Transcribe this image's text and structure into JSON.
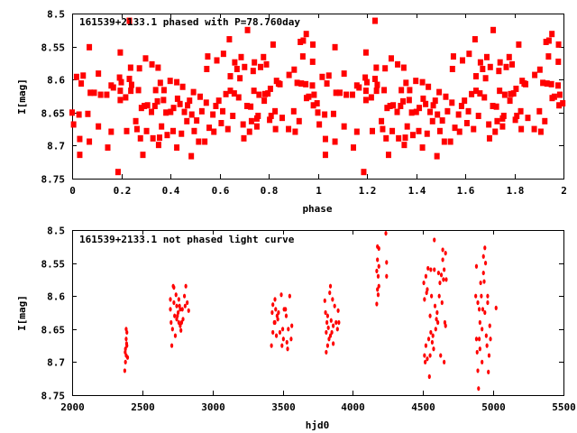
{
  "chart_data": [
    {
      "type": "scatter",
      "title": "161539+2133.1 phased with P=78.760day",
      "xlabel": "phase",
      "ylabel": "I[mag]",
      "xlim": [
        0,
        2
      ],
      "ylim": [
        8.75,
        8.5
      ],
      "y_inverted": true,
      "x_ticks": [
        "0",
        "0.2",
        "0.4",
        "0.6",
        "0.8",
        "1",
        "1.2",
        "1.4",
        "1.6",
        "1.8",
        "2"
      ],
      "x_tick_values": [
        0,
        0.2,
        0.4,
        0.6,
        0.8,
        1,
        1.2,
        1.4,
        1.6,
        1.8,
        2
      ],
      "y_ticks": [
        "8.5",
        "8.55",
        "8.6",
        "8.65",
        "8.7",
        "8.75"
      ],
      "y_tick_values": [
        8.5,
        8.55,
        8.6,
        8.65,
        8.7,
        8.75
      ],
      "grid": false,
      "color": "#ff0000",
      "phase_repeated_twice": true,
      "points": [
        [
          0.0,
          8.65
        ],
        [
          0.006,
          8.668
        ],
        [
          0.018,
          8.596
        ],
        [
          0.028,
          8.653
        ],
        [
          0.031,
          8.69
        ],
        [
          0.031,
          8.714
        ],
        [
          0.037,
          8.606
        ],
        [
          0.045,
          8.594
        ],
        [
          0.064,
          8.652
        ],
        [
          0.07,
          8.551
        ],
        [
          0.07,
          8.694
        ],
        [
          0.074,
          8.62
        ],
        [
          0.09,
          8.62
        ],
        [
          0.107,
          8.591
        ],
        [
          0.107,
          8.671
        ],
        [
          0.116,
          8.623
        ],
        [
          0.141,
          8.623
        ],
        [
          0.145,
          8.703
        ],
        [
          0.159,
          8.679
        ],
        [
          0.159,
          8.609
        ],
        [
          0.168,
          8.612
        ],
        [
          0.187,
          8.74
        ],
        [
          0.193,
          8.597
        ],
        [
          0.196,
          8.559
        ],
        [
          0.196,
          8.617
        ],
        [
          0.196,
          8.631
        ],
        [
          0.2,
          8.604
        ],
        [
          0.218,
          8.627
        ],
        [
          0.222,
          8.678
        ],
        [
          0.233,
          8.511
        ],
        [
          0.233,
          8.599
        ],
        [
          0.238,
          8.582
        ],
        [
          0.239,
          8.617
        ],
        [
          0.242,
          8.608
        ],
        [
          0.259,
          8.663
        ],
        [
          0.264,
          8.675
        ],
        [
          0.27,
          8.616
        ],
        [
          0.274,
          8.583
        ],
        [
          0.278,
          8.689
        ],
        [
          0.282,
          8.643
        ],
        [
          0.288,
          8.714
        ],
        [
          0.294,
          8.64
        ],
        [
          0.299,
          8.568
        ],
        [
          0.303,
          8.678
        ],
        [
          0.307,
          8.639
        ],
        [
          0.323,
          8.649
        ],
        [
          0.325,
          8.577
        ],
        [
          0.329,
          8.689
        ],
        [
          0.337,
          8.64
        ],
        [
          0.34,
          8.616
        ],
        [
          0.347,
          8.633
        ],
        [
          0.35,
          8.582
        ],
        [
          0.352,
          8.699
        ],
        [
          0.356,
          8.688
        ],
        [
          0.359,
          8.605
        ],
        [
          0.364,
          8.671
        ],
        [
          0.372,
          8.631
        ],
        [
          0.374,
          8.616
        ],
        [
          0.382,
          8.65
        ],
        [
          0.387,
          8.684
        ],
        [
          0.399,
          8.602
        ],
        [
          0.401,
          8.649
        ],
        [
          0.411,
          8.678
        ],
        [
          0.413,
          8.643
        ],
        [
          0.426,
          8.604
        ],
        [
          0.426,
          8.703
        ],
        [
          0.429,
          8.629
        ],
        [
          0.439,
          8.637
        ],
        [
          0.445,
          8.682
        ],
        [
          0.45,
          8.611
        ],
        [
          0.457,
          8.649
        ],
        [
          0.467,
          8.663
        ],
        [
          0.47,
          8.639
        ],
        [
          0.478,
          8.632
        ],
        [
          0.485,
          8.716
        ],
        [
          0.487,
          8.653
        ],
        [
          0.494,
          8.619
        ],
        [
          0.497,
          8.678
        ],
        [
          0.507,
          8.662
        ],
        [
          0.515,
          8.694
        ],
        [
          0.521,
          8.626
        ],
        [
          0.528,
          8.648
        ],
        [
          0.54,
          8.694
        ],
        [
          0.546,
          8.635
        ],
        [
          0.548,
          8.584
        ],
        [
          0.552,
          8.565
        ],
        [
          0.558,
          8.673
        ],
        [
          0.573,
          8.653
        ],
        [
          0.577,
          8.679
        ],
        [
          0.585,
          8.64
        ],
        [
          0.589,
          8.571
        ],
        [
          0.597,
          8.632
        ],
        [
          0.607,
          8.666
        ],
        [
          0.613,
          8.648
        ],
        [
          0.616,
          8.561
        ],
        [
          0.626,
          8.622
        ],
        [
          0.634,
          8.675
        ],
        [
          0.64,
          8.539
        ],
        [
          0.644,
          8.595
        ],
        [
          0.644,
          8.617
        ],
        [
          0.654,
          8.655
        ],
        [
          0.66,
          8.621
        ],
        [
          0.662,
          8.574
        ],
        [
          0.671,
          8.584
        ],
        [
          0.678,
          8.627
        ],
        [
          0.683,
          8.598
        ],
        [
          0.688,
          8.566
        ],
        [
          0.696,
          8.668
        ],
        [
          0.699,
          8.689
        ],
        [
          0.702,
          8.581
        ],
        [
          0.712,
          8.64
        ],
        [
          0.714,
          8.525
        ],
        [
          0.722,
          8.679
        ],
        [
          0.727,
          8.641
        ],
        [
          0.73,
          8.663
        ],
        [
          0.737,
          8.587
        ],
        [
          0.74,
          8.617
        ],
        [
          0.742,
          8.574
        ],
        [
          0.752,
          8.659
        ],
        [
          0.752,
          8.671
        ],
        [
          0.757,
          8.655
        ],
        [
          0.761,
          8.623
        ],
        [
          0.767,
          8.581
        ],
        [
          0.779,
          8.566
        ],
        [
          0.782,
          8.632
        ],
        [
          0.785,
          8.622
        ],
        [
          0.791,
          8.577
        ],
        [
          0.797,
          8.621
        ],
        [
          0.804,
          8.661
        ],
        [
          0.807,
          8.614
        ],
        [
          0.81,
          8.655
        ],
        [
          0.818,
          8.547
        ],
        [
          0.826,
          8.648
        ],
        [
          0.828,
          8.675
        ],
        [
          0.832,
          8.602
        ],
        [
          0.84,
          8.606
        ],
        [
          0.846,
          8.607
        ],
        [
          0.855,
          8.658
        ],
        [
          0.881,
          8.675
        ],
        [
          0.883,
          8.593
        ],
        [
          0.902,
          8.648
        ],
        [
          0.904,
          8.585
        ],
        [
          0.908,
          8.679
        ],
        [
          0.916,
          8.605
        ],
        [
          0.924,
          8.663
        ],
        [
          0.929,
          8.543
        ],
        [
          0.933,
          8.606
        ],
        [
          0.939,
          8.565
        ],
        [
          0.941,
          8.541
        ],
        [
          0.951,
          8.607
        ],
        [
          0.953,
          8.531
        ],
        [
          0.954,
          8.628
        ],
        [
          0.963,
          8.626
        ],
        [
          0.978,
          8.609
        ],
        [
          0.979,
          8.573
        ],
        [
          0.98,
          8.547
        ],
        [
          0.982,
          8.639
        ],
        [
          0.985,
          8.623
        ],
        [
          0.997,
          8.636
        ]
      ]
    },
    {
      "type": "scatter",
      "title": "161539+2133.1 not phased light curve",
      "xlabel": "hjd0",
      "ylabel": "I[mag]",
      "xlim": [
        2000,
        5500
      ],
      "ylim": [
        8.75,
        8.5
      ],
      "y_inverted": true,
      "x_ticks": [
        "2000",
        "2500",
        "3000",
        "3500",
        "4000",
        "4500",
        "5000",
        "5500"
      ],
      "x_tick_values": [
        2000,
        2500,
        3000,
        3500,
        4000,
        4500,
        5000,
        5500
      ],
      "y_ticks": [
        "8.5",
        "8.55",
        "8.6",
        "8.65",
        "8.7",
        "8.75"
      ],
      "y_tick_values": [
        8.5,
        8.55,
        8.6,
        8.65,
        8.7,
        8.75
      ],
      "grid": false,
      "color": "#ff0000",
      "points": [
        [
          2375,
          8.713
        ],
        [
          2380,
          8.7
        ],
        [
          2385,
          8.69
        ],
        [
          2380,
          8.68
        ],
        [
          2390,
          8.675
        ],
        [
          2385,
          8.665
        ],
        [
          2390,
          8.655
        ],
        [
          2385,
          8.65
        ],
        [
          2395,
          8.693
        ],
        [
          2378,
          8.685
        ],
        [
          2388,
          8.672
        ],
        [
          2700,
          8.605
        ],
        [
          2700,
          8.62
        ],
        [
          2705,
          8.64
        ],
        [
          2710,
          8.675
        ],
        [
          2715,
          8.65
        ],
        [
          2720,
          8.585
        ],
        [
          2725,
          8.587
        ],
        [
          2730,
          8.63
        ],
        [
          2735,
          8.66
        ],
        [
          2740,
          8.598
        ],
        [
          2745,
          8.615
        ],
        [
          2750,
          8.63
        ],
        [
          2755,
          8.625
        ],
        [
          2760,
          8.64
        ],
        [
          2765,
          8.615
        ],
        [
          2770,
          8.645
        ],
        [
          2775,
          8.652
        ],
        [
          2780,
          8.64
        ],
        [
          2785,
          8.62
        ],
        [
          2790,
          8.635
        ],
        [
          2800,
          8.6
        ],
        [
          2805,
          8.615
        ],
        [
          2810,
          8.585
        ],
        [
          2820,
          8.61
        ],
        [
          2830,
          8.622
        ],
        [
          2725,
          8.61
        ],
        [
          2745,
          8.635
        ],
        [
          2760,
          8.605
        ],
        [
          2770,
          8.62
        ],
        [
          3420,
          8.675
        ],
        [
          3425,
          8.625
        ],
        [
          3430,
          8.613
        ],
        [
          3430,
          8.655
        ],
        [
          3440,
          8.64
        ],
        [
          3445,
          8.605
        ],
        [
          3450,
          8.62
        ],
        [
          3455,
          8.66
        ],
        [
          3460,
          8.63
        ],
        [
          3465,
          8.635
        ],
        [
          3470,
          8.625
        ],
        [
          3480,
          8.655
        ],
        [
          3490,
          8.598
        ],
        [
          3495,
          8.675
        ],
        [
          3500,
          8.65
        ],
        [
          3505,
          8.665
        ],
        [
          3510,
          8.62
        ],
        [
          3520,
          8.62
        ],
        [
          3530,
          8.67
        ],
        [
          3535,
          8.68
        ],
        [
          3540,
          8.65
        ],
        [
          3550,
          8.6
        ],
        [
          3560,
          8.665
        ],
        [
          3565,
          8.645
        ],
        [
          3525,
          8.63
        ],
        [
          3445,
          8.64
        ],
        [
          3800,
          8.607
        ],
        [
          3805,
          8.625
        ],
        [
          3810,
          8.685
        ],
        [
          3810,
          8.655
        ],
        [
          3815,
          8.64
        ],
        [
          3820,
          8.675
        ],
        [
          3825,
          8.648
        ],
        [
          3830,
          8.665
        ],
        [
          3835,
          8.595
        ],
        [
          3840,
          8.585
        ],
        [
          3845,
          8.637
        ],
        [
          3850,
          8.655
        ],
        [
          3855,
          8.605
        ],
        [
          3860,
          8.645
        ],
        [
          3860,
          8.672
        ],
        [
          3870,
          8.615
        ],
        [
          3880,
          8.64
        ],
        [
          3890,
          8.65
        ],
        [
          3895,
          8.622
        ],
        [
          3900,
          8.64
        ],
        [
          3820,
          8.63
        ],
        [
          3840,
          8.66
        ],
        [
          4170,
          8.612
        ],
        [
          4170,
          8.562
        ],
        [
          4175,
          8.545
        ],
        [
          4175,
          8.525
        ],
        [
          4180,
          8.57
        ],
        [
          4180,
          8.598
        ],
        [
          4185,
          8.555
        ],
        [
          4185,
          8.585
        ],
        [
          4185,
          8.528
        ],
        [
          4235,
          8.505
        ],
        [
          4240,
          8.549
        ],
        [
          4240,
          8.57
        ],
        [
          4175,
          8.59
        ],
        [
          4505,
          8.58
        ],
        [
          4510,
          8.605
        ],
        [
          4510,
          8.69
        ],
        [
          4515,
          8.7
        ],
        [
          4520,
          8.57
        ],
        [
          4520,
          8.675
        ],
        [
          4525,
          8.595
        ],
        [
          4530,
          8.59
        ],
        [
          4530,
          8.695
        ],
        [
          4535,
          8.558
        ],
        [
          4540,
          8.665
        ],
        [
          4545,
          8.722
        ],
        [
          4550,
          8.69
        ],
        [
          4550,
          8.63
        ],
        [
          4555,
          8.56
        ],
        [
          4555,
          8.655
        ],
        [
          4560,
          8.6
        ],
        [
          4565,
          8.67
        ],
        [
          4570,
          8.66
        ],
        [
          4575,
          8.68
        ],
        [
          4580,
          8.515
        ],
        [
          4580,
          8.56
        ],
        [
          4585,
          8.615
        ],
        [
          4590,
          8.65
        ],
        [
          4595,
          8.635
        ],
        [
          4600,
          8.625
        ],
        [
          4605,
          8.64
        ],
        [
          4610,
          8.565
        ],
        [
          4615,
          8.6
        ],
        [
          4620,
          8.58
        ],
        [
          4625,
          8.69
        ],
        [
          4630,
          8.568
        ],
        [
          4635,
          8.61
        ],
        [
          4640,
          8.53
        ],
        [
          4640,
          8.545
        ],
        [
          4645,
          8.575
        ],
        [
          4650,
          8.56
        ],
        [
          4650,
          8.7
        ],
        [
          4655,
          8.64
        ],
        [
          4660,
          8.535
        ],
        [
          4660,
          8.645
        ],
        [
          4665,
          8.575
        ],
        [
          4875,
          8.6
        ],
        [
          4880,
          8.555
        ],
        [
          4880,
          8.665
        ],
        [
          4885,
          8.685
        ],
        [
          4890,
          8.61
        ],
        [
          4890,
          8.713
        ],
        [
          4895,
          8.74
        ],
        [
          4900,
          8.62
        ],
        [
          4900,
          8.665
        ],
        [
          4905,
          8.64
        ],
        [
          4905,
          8.68
        ],
        [
          4910,
          8.58
        ],
        [
          4915,
          8.6
        ],
        [
          4920,
          8.7
        ],
        [
          4925,
          8.62
        ],
        [
          4930,
          8.54
        ],
        [
          4930,
          8.565
        ],
        [
          4935,
          8.578
        ],
        [
          4940,
          8.527
        ],
        [
          4940,
          8.625
        ],
        [
          4945,
          8.55
        ],
        [
          4950,
          8.66
        ],
        [
          4955,
          8.675
        ],
        [
          4960,
          8.61
        ],
        [
          4965,
          8.715
        ],
        [
          4970,
          8.69
        ],
        [
          4975,
          8.645
        ],
        [
          4980,
          8.665
        ],
        [
          5020,
          8.618
        ],
        [
          4920,
          8.65
        ],
        [
          4960,
          8.6
        ]
      ]
    }
  ]
}
